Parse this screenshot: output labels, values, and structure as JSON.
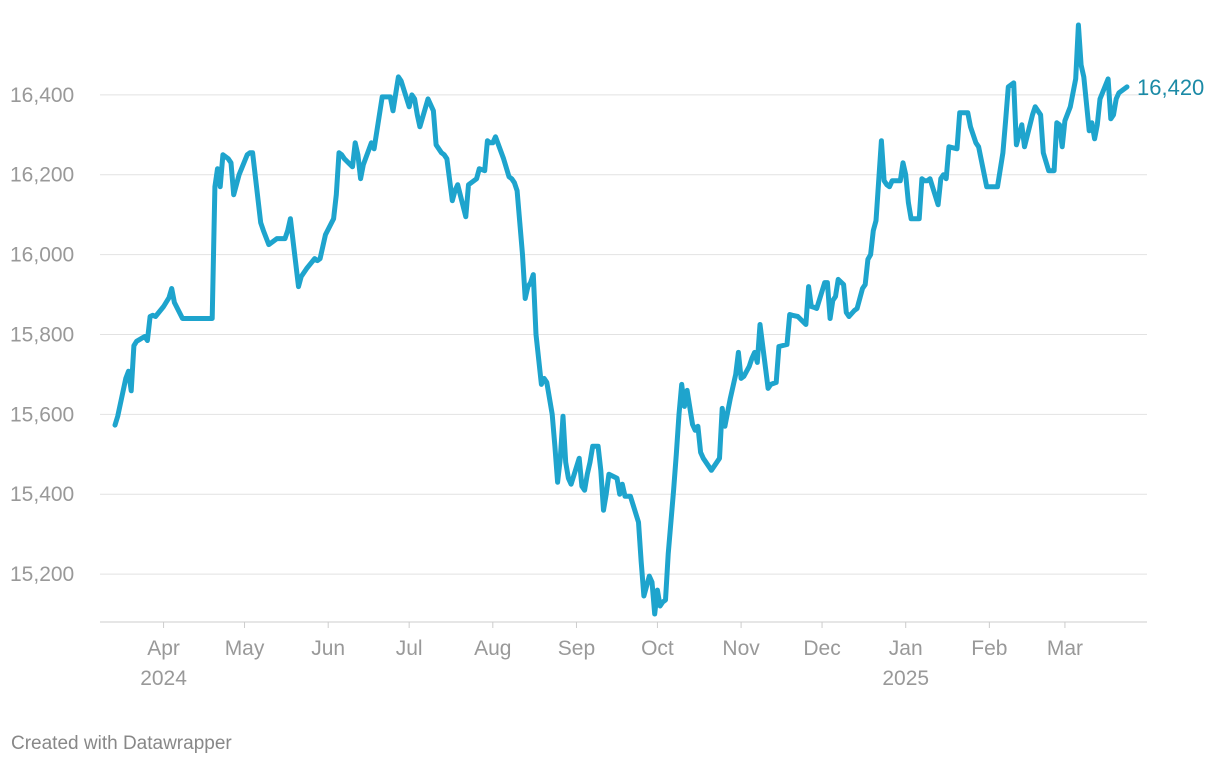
{
  "chart_data": {
    "type": "line",
    "title": "",
    "xlabel": "",
    "ylabel": "",
    "ylim": [
      15080,
      16600
    ],
    "xlim": [
      "2024-03-14",
      "2025-03-24"
    ],
    "grid": true,
    "legend": "none",
    "line_color": "#1ea4cd",
    "label_color": "#1b8aa6",
    "y_ticks": [
      {
        "value": 15200,
        "label": "15,200"
      },
      {
        "value": 15400,
        "label": "15,400"
      },
      {
        "value": 15600,
        "label": "15,600"
      },
      {
        "value": 15800,
        "label": "15,800"
      },
      {
        "value": 16000,
        "label": "16,000"
      },
      {
        "value": 16200,
        "label": "16,200"
      },
      {
        "value": 16400,
        "label": "16,400"
      }
    ],
    "x_ticks": [
      {
        "date": "2024-04-01",
        "label": "Apr",
        "year": "2024"
      },
      {
        "date": "2024-05-01",
        "label": "May",
        "year": ""
      },
      {
        "date": "2024-06-01",
        "label": "Jun",
        "year": ""
      },
      {
        "date": "2024-07-01",
        "label": "Jul",
        "year": ""
      },
      {
        "date": "2024-08-01",
        "label": "Aug",
        "year": ""
      },
      {
        "date": "2024-09-01",
        "label": "Sep",
        "year": ""
      },
      {
        "date": "2024-10-01",
        "label": "Oct",
        "year": ""
      },
      {
        "date": "2024-11-01",
        "label": "Nov",
        "year": ""
      },
      {
        "date": "2024-12-01",
        "label": "Dec",
        "year": ""
      },
      {
        "date": "2025-01-01",
        "label": "Jan",
        "year": "2025"
      },
      {
        "date": "2025-02-01",
        "label": "Feb",
        "year": ""
      },
      {
        "date": "2025-03-01",
        "label": "Mar",
        "year": ""
      }
    ],
    "end_label": "16,420",
    "series": [
      {
        "x": [
          "2024-03-14",
          "2024-03-15",
          "2024-03-18",
          "2024-03-19",
          "2024-03-20",
          "2024-03-21",
          "2024-03-22",
          "2024-03-25",
          "2024-03-26",
          "2024-03-27",
          "2024-03-28",
          "2024-03-29",
          "2024-04-01",
          "2024-04-03",
          "2024-04-04",
          "2024-04-05",
          "2024-04-08",
          "2024-04-19",
          "2024-04-20",
          "2024-04-21",
          "2024-04-22",
          "2024-04-23",
          "2024-04-25",
          "2024-04-26",
          "2024-04-27",
          "2024-04-29",
          "2024-05-02",
          "2024-05-03",
          "2024-05-04",
          "2024-05-07",
          "2024-05-08",
          "2024-05-10",
          "2024-05-13",
          "2024-05-16",
          "2024-05-17",
          "2024-05-18",
          "2024-05-21",
          "2024-05-22",
          "2024-05-24",
          "2024-05-27",
          "2024-05-28",
          "2024-05-29",
          "2024-05-31",
          "2024-06-03",
          "2024-06-04",
          "2024-06-05",
          "2024-06-06",
          "2024-06-07",
          "2024-06-10",
          "2024-06-11",
          "2024-06-12",
          "2024-06-13",
          "2024-06-14",
          "2024-06-17",
          "2024-06-18",
          "2024-06-21",
          "2024-06-22",
          "2024-06-24",
          "2024-06-25",
          "2024-06-27",
          "2024-06-28",
          "2024-07-01",
          "2024-07-02",
          "2024-07-03",
          "2024-07-04",
          "2024-07-05",
          "2024-07-08",
          "2024-07-10",
          "2024-07-11",
          "2024-07-13",
          "2024-07-14",
          "2024-07-15",
          "2024-07-17",
          "2024-07-18",
          "2024-07-19",
          "2024-07-22",
          "2024-07-23",
          "2024-07-26",
          "2024-07-27",
          "2024-07-29",
          "2024-07-30",
          "2024-07-31",
          "2024-08-01",
          "2024-08-02",
          "2024-08-05",
          "2024-08-07",
          "2024-08-08",
          "2024-08-09",
          "2024-08-10",
          "2024-08-11",
          "2024-08-12",
          "2024-08-13",
          "2024-08-14",
          "2024-08-15",
          "2024-08-16",
          "2024-08-17",
          "2024-08-19",
          "2024-08-20",
          "2024-08-21",
          "2024-08-23",
          "2024-08-24",
          "2024-08-25",
          "2024-08-26",
          "2024-08-27",
          "2024-08-28",
          "2024-08-29",
          "2024-08-30",
          "2024-09-02",
          "2024-09-03",
          "2024-09-04",
          "2024-09-05",
          "2024-09-06",
          "2024-09-07",
          "2024-09-09",
          "2024-09-10",
          "2024-09-11",
          "2024-09-12",
          "2024-09-13",
          "2024-09-16",
          "2024-09-17",
          "2024-09-18",
          "2024-09-19",
          "2024-09-20",
          "2024-09-21",
          "2024-09-24",
          "2024-09-25",
          "2024-09-26",
          "2024-09-27",
          "2024-09-28",
          "2024-09-29",
          "2024-09-30",
          "2024-10-01",
          "2024-10-02",
          "2024-10-03",
          "2024-10-04",
          "2024-10-05",
          "2024-10-07",
          "2024-10-08",
          "2024-10-09",
          "2024-10-10",
          "2024-10-11",
          "2024-10-12",
          "2024-10-14",
          "2024-10-15",
          "2024-10-16",
          "2024-10-17",
          "2024-10-18",
          "2024-10-21",
          "2024-10-23",
          "2024-10-24",
          "2024-10-25",
          "2024-10-26",
          "2024-10-28",
          "2024-10-30",
          "2024-10-31",
          "2024-11-01",
          "2024-11-02",
          "2024-11-04",
          "2024-11-05",
          "2024-11-06",
          "2024-11-07",
          "2024-11-08",
          "2024-11-11",
          "2024-11-12",
          "2024-11-14",
          "2024-11-15",
          "2024-11-18",
          "2024-11-19",
          "2024-11-20",
          "2024-11-22",
          "2024-11-25",
          "2024-11-26",
          "2024-11-27",
          "2024-11-28",
          "2024-11-29",
          "2024-12-02",
          "2024-12-03",
          "2024-12-04",
          "2024-12-05",
          "2024-12-06",
          "2024-12-07",
          "2024-12-09",
          "2024-12-10",
          "2024-12-11",
          "2024-12-13",
          "2024-12-14",
          "2024-12-16",
          "2024-12-17",
          "2024-12-18",
          "2024-12-19",
          "2024-12-20",
          "2024-12-21",
          "2024-12-23",
          "2024-12-24",
          "2024-12-25",
          "2024-12-26",
          "2024-12-27",
          "2024-12-30",
          "2024-12-31",
          "2025-01-01",
          "2025-01-02",
          "2025-01-03",
          "2025-01-06",
          "2025-01-07",
          "2025-01-08",
          "2025-01-09",
          "2025-01-10",
          "2025-01-13",
          "2025-01-14",
          "2025-01-15",
          "2025-01-16",
          "2025-01-17",
          "2025-01-20",
          "2025-01-21",
          "2025-01-22",
          "2025-01-23",
          "2025-01-24",
          "2025-01-25",
          "2025-01-27",
          "2025-01-28",
          "2025-01-31",
          "2025-02-03",
          "2025-02-04",
          "2025-02-06",
          "2025-02-07",
          "2025-02-08",
          "2025-02-10",
          "2025-02-11",
          "2025-02-13",
          "2025-02-14",
          "2025-02-17",
          "2025-02-18",
          "2025-02-20",
          "2025-02-21",
          "2025-02-23",
          "2025-02-25",
          "2025-02-26",
          "2025-02-27",
          "2025-02-28",
          "2025-03-01",
          "2025-03-03",
          "2025-03-05",
          "2025-03-06",
          "2025-03-07",
          "2025-03-08",
          "2025-03-10",
          "2025-03-11",
          "2025-03-12",
          "2025-03-13",
          "2025-03-14",
          "2025-03-17",
          "2025-03-18",
          "2025-03-19",
          "2025-03-20",
          "2025-03-21",
          "2025-03-24"
        ],
        "y": [
          15573,
          15595,
          15690,
          15708,
          15659,
          15772,
          15783,
          15795,
          15785,
          15845,
          15848,
          15845,
          15870,
          15892,
          15915,
          15880,
          15840,
          15840,
          16170,
          16215,
          16170,
          16250,
          16240,
          16230,
          16150,
          16200,
          16250,
          16255,
          16255,
          16080,
          16060,
          16025,
          16040,
          16040,
          16060,
          16090,
          15920,
          15945,
          15965,
          15990,
          15985,
          15990,
          16050,
          16090,
          16150,
          16255,
          16250,
          16240,
          16220,
          16280,
          16250,
          16190,
          16225,
          16280,
          16265,
          16395,
          16395,
          16395,
          16360,
          16445,
          16435,
          16370,
          16400,
          16390,
          16350,
          16320,
          16390,
          16360,
          16275,
          16255,
          16250,
          16240,
          16135,
          16160,
          16175,
          16095,
          16175,
          16190,
          16215,
          16210,
          16285,
          16280,
          16280,
          16295,
          16240,
          16195,
          16190,
          16180,
          16160,
          16080,
          16000,
          15890,
          15920,
          15930,
          15950,
          15800,
          15675,
          15690,
          15680,
          15600,
          15520,
          15430,
          15490,
          15595,
          15480,
          15440,
          15425,
          15490,
          15420,
          15410,
          15450,
          15480,
          15520,
          15520,
          15460,
          15360,
          15400,
          15450,
          15440,
          15400,
          15425,
          15395,
          15395,
          15395,
          15330,
          15230,
          15145,
          15170,
          15195,
          15180,
          15100,
          15160,
          15120,
          15130,
          15135,
          15250,
          15410,
          15500,
          15600,
          15675,
          15620,
          15660,
          15575,
          15560,
          15570,
          15505,
          15490,
          15460,
          15480,
          15490,
          15615,
          15570,
          15640,
          15700,
          15755,
          15690,
          15695,
          15720,
          15740,
          15755,
          15730,
          15825,
          15665,
          15675,
          15680,
          15770,
          15775,
          15850,
          15848,
          15845,
          15825,
          15920,
          15870,
          15868,
          15865,
          15930,
          15930,
          15840,
          15885,
          15895,
          15938,
          15925,
          15855,
          15845,
          15860,
          15865,
          15915,
          15925,
          15988,
          16000,
          16060,
          16085,
          16285,
          16185,
          16175,
          16170,
          16185,
          16185,
          16230,
          16200,
          16130,
          16090,
          16090,
          16190,
          16185,
          16185,
          16190,
          16125,
          16190,
          16200,
          16190,
          16270,
          16265,
          16355,
          16355,
          16355,
          16355,
          16320,
          16280,
          16270,
          16170,
          16170,
          16170,
          16255,
          16335,
          16420,
          16430,
          16275,
          16325,
          16270,
          16350,
          16370,
          16350,
          16255,
          16210,
          16210,
          16330,
          16325,
          16270,
          16335,
          16370,
          16440,
          16575,
          16475,
          16445,
          16310,
          16330,
          16290,
          16325,
          16390,
          16440,
          16340,
          16350,
          16390,
          16405,
          16420
        ]
      }
    ]
  },
  "footer": {
    "credit": "Created with Datawrapper"
  }
}
